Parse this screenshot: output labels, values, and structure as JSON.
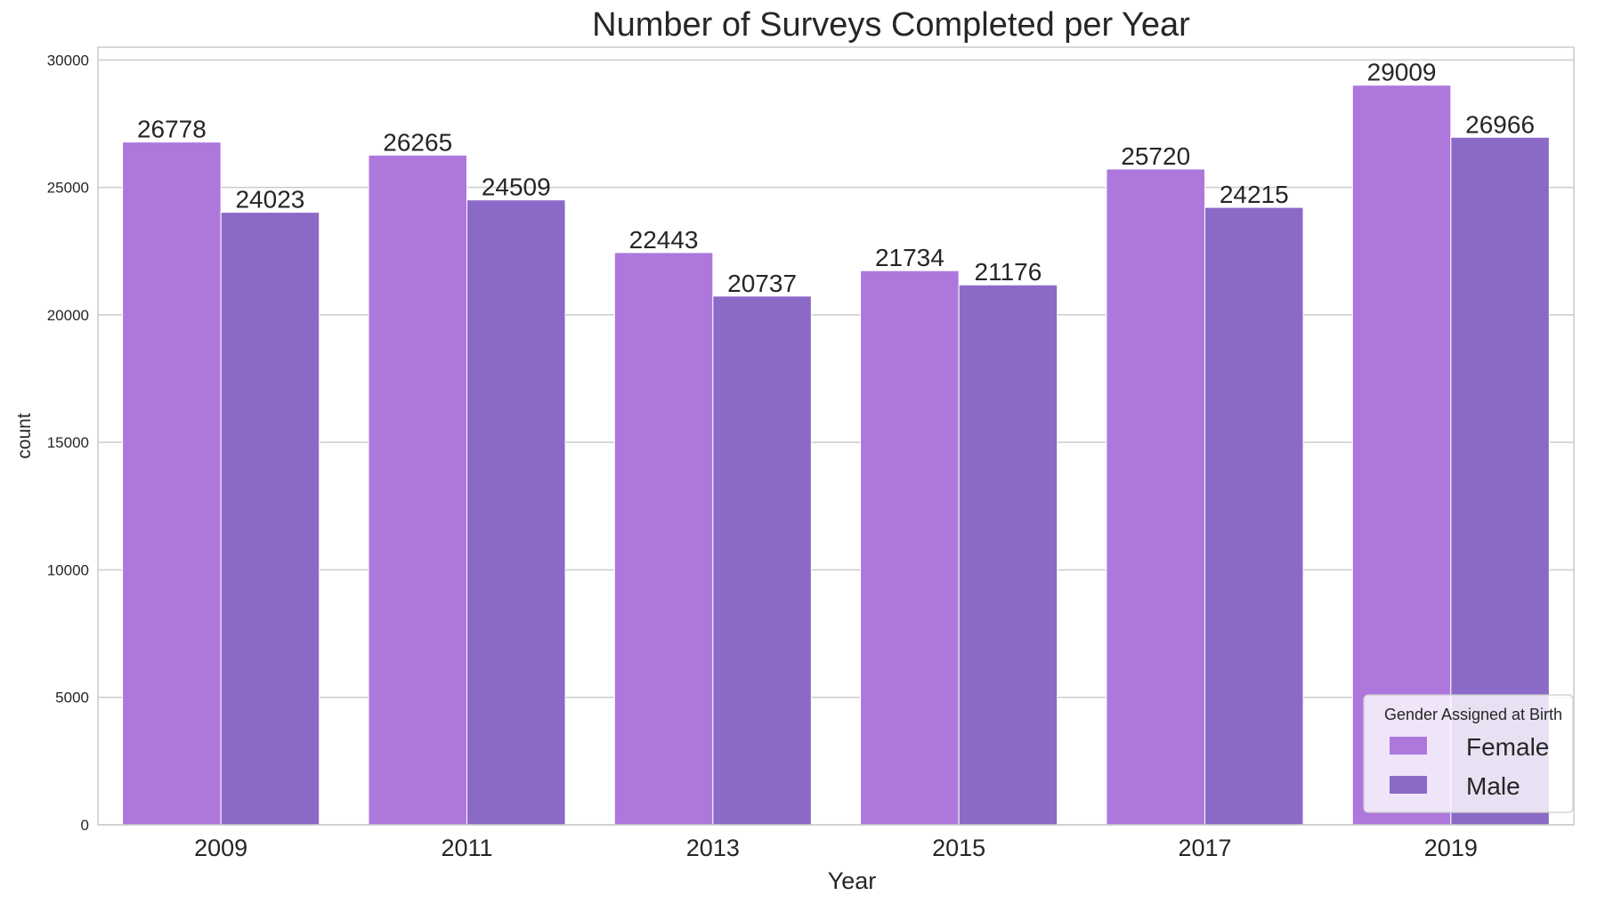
{
  "chart_data": {
    "type": "bar",
    "title": "Number of Surveys Completed per Year",
    "xlabel": "Year",
    "ylabel": "count",
    "categories": [
      "2009",
      "2011",
      "2013",
      "2015",
      "2017",
      "2019"
    ],
    "series": [
      {
        "name": "Female",
        "color": "#ad77dc",
        "values": [
          26778,
          26265,
          22443,
          21734,
          25720,
          29009
        ]
      },
      {
        "name": "Male",
        "color": "#8b69c7",
        "values": [
          24023,
          24509,
          20737,
          21176,
          24215,
          26966
        ]
      }
    ],
    "ylim": [
      0,
      30500
    ],
    "yticks": [
      "0",
      "5000",
      "10000",
      "15000",
      "20000",
      "25000",
      "30000"
    ],
    "grid": true,
    "legend": {
      "title": "Gender Assigned at Birth",
      "placement": "lower-right"
    }
  }
}
